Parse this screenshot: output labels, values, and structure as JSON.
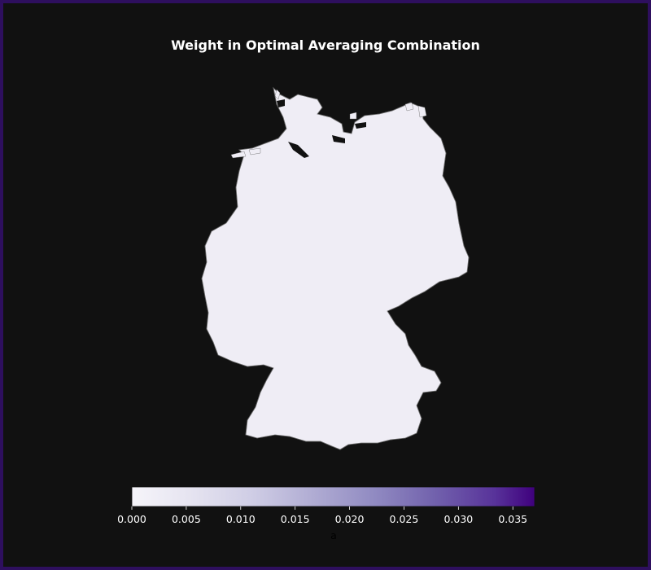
{
  "title": "Weight in Optimal Averaging Combination",
  "colorbar": {
    "label": "a",
    "ticks": [
      "0.000",
      "0.005",
      "0.010",
      "0.015",
      "0.020",
      "0.025",
      "0.030",
      "0.035"
    ],
    "tick_values": [
      0.0,
      0.005,
      0.01,
      0.015,
      0.02,
      0.025,
      0.03,
      0.035
    ],
    "range": [
      0.0,
      0.037
    ],
    "colormap": "Purples",
    "color_low": "#f6f5fa",
    "color_high": "#3f007d"
  },
  "colors": {
    "background": "#111111",
    "frame": "#2e0f5e",
    "text": "#ffffff",
    "region_border": "#555555"
  }
}
